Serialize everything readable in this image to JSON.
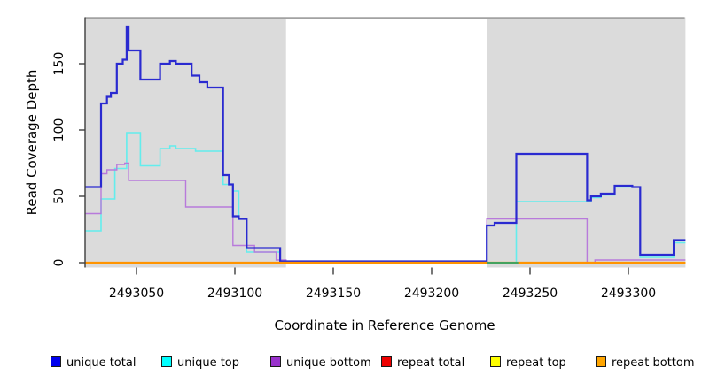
{
  "axes": {
    "x_title": "Coordinate in Reference Genome",
    "y_title": "Read Coverage Depth"
  },
  "legend": {
    "items": [
      {
        "label": "unique total",
        "color": "#0000EE"
      },
      {
        "label": "unique top",
        "color": "#00FFFF"
      },
      {
        "label": "unique bottom",
        "color": "#9932CC"
      },
      {
        "label": "repeat total",
        "color": "#EE0000"
      },
      {
        "label": "repeat top",
        "color": "#FFFF00"
      },
      {
        "label": "repeat bottom",
        "color": "#FFA500"
      }
    ]
  },
  "chart_data": {
    "type": "line",
    "style": "step",
    "title": "",
    "xlabel": "Coordinate in Reference Genome",
    "ylabel": "Read Coverage Depth",
    "xlim": [
      2493024,
      2493329
    ],
    "ylim": [
      0,
      186
    ],
    "x_ticks": [
      2493050,
      2493100,
      2493150,
      2493200,
      2493250,
      2493300
    ],
    "x_tick_labels": [
      "2493050",
      "2493100",
      "2493150",
      "2493200",
      "2493250",
      "2493300"
    ],
    "y_ticks": [
      0,
      50,
      100,
      150
    ],
    "y_tick_labels": [
      "0",
      "50",
      "100",
      "150"
    ],
    "grid": false,
    "legend_position": "bottom",
    "shaded_regions": {
      "color": "#DBDBDB",
      "border_color": "#A2A2A2",
      "x_ranges": [
        [
          2493024,
          2493126
        ],
        [
          2493228,
          2493329
        ]
      ]
    },
    "series": [
      {
        "name": "unique total",
        "line_color": "#2A2AD0",
        "points": [
          [
            2493024,
            57
          ],
          [
            2493032,
            120
          ],
          [
            2493035,
            125
          ],
          [
            2493037,
            128
          ],
          [
            2493040,
            150
          ],
          [
            2493043,
            153
          ],
          [
            2493045,
            178
          ],
          [
            2493046,
            160
          ],
          [
            2493052,
            138
          ],
          [
            2493062,
            150
          ],
          [
            2493067,
            152
          ],
          [
            2493070,
            150
          ],
          [
            2493078,
            141
          ],
          [
            2493082,
            136
          ],
          [
            2493086,
            132
          ],
          [
            2493094,
            66
          ],
          [
            2493097,
            59
          ],
          [
            2493099,
            35
          ],
          [
            2493102,
            33
          ],
          [
            2493106,
            11
          ],
          [
            2493123,
            1
          ],
          [
            2493228,
            28
          ],
          [
            2493232,
            30
          ],
          [
            2493243,
            82
          ],
          [
            2493279,
            47
          ],
          [
            2493281,
            50
          ],
          [
            2493286,
            52
          ],
          [
            2493293,
            58
          ],
          [
            2493302,
            57
          ],
          [
            2493306,
            6
          ],
          [
            2493323,
            17
          ],
          [
            2493329,
            17
          ]
        ]
      },
      {
        "name": "unique top",
        "line_color": "#63EDED",
        "points": [
          [
            2493024,
            24
          ],
          [
            2493032,
            48
          ],
          [
            2493039,
            71
          ],
          [
            2493045,
            98
          ],
          [
            2493052,
            73
          ],
          [
            2493062,
            86
          ],
          [
            2493067,
            88
          ],
          [
            2493070,
            86
          ],
          [
            2493080,
            84
          ],
          [
            2493094,
            59
          ],
          [
            2493099,
            54
          ],
          [
            2493102,
            33
          ],
          [
            2493106,
            8
          ],
          [
            2493123,
            0
          ],
          [
            2493243,
            46
          ],
          [
            2493281,
            49
          ],
          [
            2493286,
            51
          ],
          [
            2493293,
            57
          ],
          [
            2493306,
            4
          ],
          [
            2493323,
            15
          ],
          [
            2493329,
            15
          ]
        ]
      },
      {
        "name": "unique bottom",
        "line_color": "#B87ADB",
        "points": [
          [
            2493024,
            37
          ],
          [
            2493032,
            67
          ],
          [
            2493035,
            70
          ],
          [
            2493040,
            74
          ],
          [
            2493044,
            75
          ],
          [
            2493046,
            62
          ],
          [
            2493075,
            42
          ],
          [
            2493099,
            13
          ],
          [
            2493110,
            8
          ],
          [
            2493121,
            2
          ],
          [
            2493126,
            1
          ],
          [
            2493228,
            33
          ],
          [
            2493279,
            0
          ],
          [
            2493283,
            2
          ],
          [
            2493329,
            2
          ]
        ]
      },
      {
        "name": "repeat total",
        "line_color": "#DD0000",
        "points": [
          [
            2493024,
            0
          ],
          [
            2493329,
            0
          ]
        ]
      },
      {
        "name": "repeat top",
        "line_color": "#F5F500",
        "points": [
          [
            2493024,
            0
          ],
          [
            2493329,
            0
          ]
        ]
      },
      {
        "name": "repeat bottom",
        "line_color": "#FF9400",
        "points": [
          [
            2493024,
            0
          ],
          [
            2493329,
            0
          ]
        ]
      }
    ],
    "baseline_blend_segment": {
      "x_range": [
        2493228,
        2493244
      ],
      "y": 0,
      "color": "#44A25E"
    }
  }
}
